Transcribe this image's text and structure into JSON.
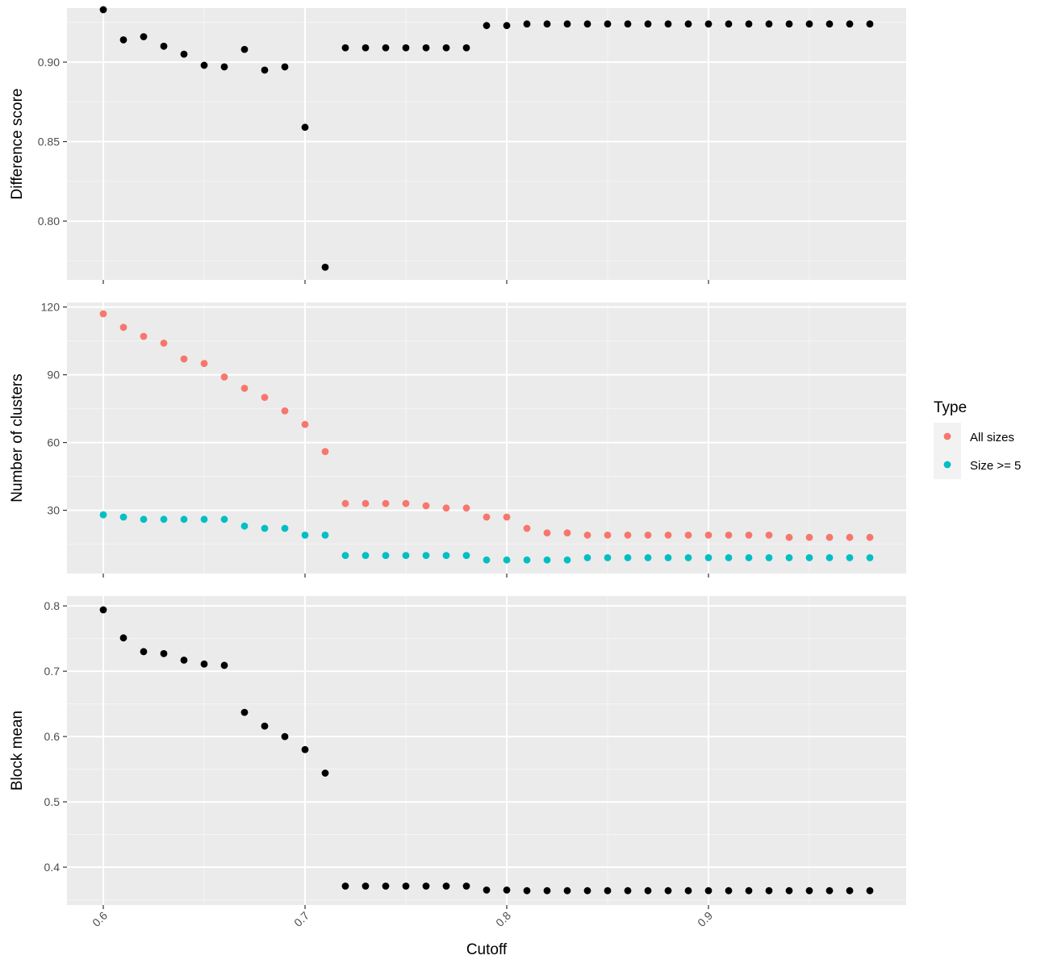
{
  "chart_data": {
    "type": "scatter",
    "xlabel": "Cutoff",
    "xlim": [
      0.582,
      0.998
    ],
    "xticks": [
      0.6,
      0.7,
      0.8,
      0.9
    ],
    "xtick_labels": [
      "0.6",
      "0.7",
      "0.8",
      "0.9"
    ],
    "x": [
      0.6,
      0.61,
      0.62,
      0.63,
      0.64,
      0.65,
      0.66,
      0.67,
      0.68,
      0.69,
      0.7,
      0.71,
      0.72,
      0.73,
      0.74,
      0.75,
      0.76,
      0.77,
      0.78,
      0.79,
      0.8,
      0.81,
      0.82,
      0.83,
      0.84,
      0.85,
      0.86,
      0.87,
      0.88,
      0.89,
      0.9,
      0.91,
      0.92,
      0.93,
      0.94,
      0.95,
      0.96,
      0.97,
      0.98
    ],
    "legend": {
      "title": "Type",
      "position": "right"
    },
    "grid": true,
    "panels": [
      {
        "ylabel": "Difference score",
        "ylim": [
          0.763,
          0.934
        ],
        "yticks": [
          0.8,
          0.85,
          0.9
        ],
        "ytick_labels": [
          "0.80",
          "0.85",
          "0.90"
        ],
        "series": [
          {
            "color": "#000000",
            "values": [
              0.933,
              0.914,
              0.916,
              0.91,
              0.905,
              0.898,
              0.897,
              0.908,
              0.895,
              0.897,
              0.859,
              0.771,
              0.909,
              0.909,
              0.909,
              0.909,
              0.909,
              0.909,
              0.909,
              0.923,
              0.923,
              0.924,
              0.924,
              0.924,
              0.924,
              0.924,
              0.924,
              0.924,
              0.924,
              0.924,
              0.924,
              0.924,
              0.924,
              0.924,
              0.924,
              0.924,
              0.924,
              0.924,
              0.924
            ]
          }
        ]
      },
      {
        "ylabel": "Number of clusters",
        "ylim": [
          2,
          122
        ],
        "yticks": [
          30,
          60,
          90,
          120
        ],
        "ytick_labels": [
          "30",
          "60",
          "90",
          "120"
        ],
        "series": [
          {
            "name": "All sizes",
            "color": "#F8766D",
            "values": [
              117,
              111,
              107,
              104,
              97,
              95,
              89,
              84,
              80,
              74,
              68,
              56,
              33,
              33,
              33,
              33,
              32,
              31,
              31,
              27,
              27,
              22,
              20,
              20,
              19,
              19,
              19,
              19,
              19,
              19,
              19,
              19,
              19,
              19,
              18,
              18,
              18,
              18,
              18
            ]
          },
          {
            "name": "Size >= 5",
            "color": "#00BFC4",
            "values": [
              28,
              27,
              26,
              26,
              26,
              26,
              26,
              23,
              22,
              22,
              19,
              19,
              10,
              10,
              10,
              10,
              10,
              10,
              10,
              8,
              8,
              8,
              8,
              8,
              9,
              9,
              9,
              9,
              9,
              9,
              9,
              9,
              9,
              9,
              9,
              9,
              9,
              9,
              9
            ]
          }
        ]
      },
      {
        "ylabel": "Block mean",
        "ylim": [
          0.342,
          0.815
        ],
        "yticks": [
          0.4,
          0.5,
          0.6,
          0.7,
          0.8
        ],
        "ytick_labels": [
          "0.4",
          "0.5",
          "0.6",
          "0.7",
          "0.8"
        ],
        "series": [
          {
            "color": "#000000",
            "values": [
              0.794,
              0.751,
              0.73,
              0.727,
              0.717,
              0.711,
              0.709,
              0.637,
              0.616,
              0.6,
              0.58,
              0.544,
              0.371,
              0.371,
              0.371,
              0.371,
              0.371,
              0.371,
              0.371,
              0.365,
              0.365,
              0.364,
              0.364,
              0.364,
              0.364,
              0.364,
              0.364,
              0.364,
              0.364,
              0.364,
              0.364,
              0.364,
              0.364,
              0.364,
              0.364,
              0.364,
              0.364,
              0.364,
              0.364
            ]
          }
        ]
      }
    ]
  }
}
